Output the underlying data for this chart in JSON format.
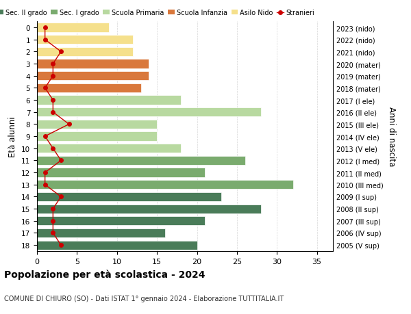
{
  "ages": [
    18,
    17,
    16,
    15,
    14,
    13,
    12,
    11,
    10,
    9,
    8,
    7,
    6,
    5,
    4,
    3,
    2,
    1,
    0
  ],
  "years": [
    "2005 (V sup)",
    "2006 (IV sup)",
    "2007 (III sup)",
    "2008 (II sup)",
    "2009 (I sup)",
    "2010 (III med)",
    "2011 (II med)",
    "2012 (I med)",
    "2013 (V ele)",
    "2014 (IV ele)",
    "2015 (III ele)",
    "2016 (II ele)",
    "2017 (I ele)",
    "2018 (mater)",
    "2019 (mater)",
    "2020 (mater)",
    "2021 (nido)",
    "2022 (nido)",
    "2023 (nido)"
  ],
  "values": [
    20,
    16,
    21,
    28,
    23,
    32,
    21,
    26,
    18,
    15,
    15,
    28,
    18,
    13,
    14,
    14,
    12,
    12,
    9
  ],
  "stranieri": [
    3,
    2,
    2,
    2,
    3,
    1,
    1,
    3,
    2,
    1,
    4,
    2,
    2,
    1,
    2,
    2,
    3,
    1,
    1
  ],
  "colors": {
    "sec2": "#4a7c59",
    "sec1": "#7aab6e",
    "primaria": "#b8d9a0",
    "infanzia": "#d9783c",
    "nido": "#f5e08c",
    "stranieri": "#cc0000"
  },
  "bar_colors_by_age": {
    "18": "#4a7c59",
    "17": "#4a7c59",
    "16": "#4a7c59",
    "15": "#4a7c59",
    "14": "#4a7c59",
    "13": "#7aab6e",
    "12": "#7aab6e",
    "11": "#7aab6e",
    "10": "#b8d9a0",
    "9": "#b8d9a0",
    "8": "#b8d9a0",
    "7": "#b8d9a0",
    "6": "#b8d9a0",
    "5": "#d9783c",
    "4": "#d9783c",
    "3": "#d9783c",
    "2": "#f5e08c",
    "1": "#f5e08c",
    "0": "#f5e08c"
  },
  "legend_labels": [
    "Sec. II grado",
    "Sec. I grado",
    "Scuola Primaria",
    "Scuola Infanzia",
    "Asilo Nido",
    "Stranieri"
  ],
  "legend_colors": [
    "#4a7c59",
    "#7aab6e",
    "#b8d9a0",
    "#d9783c",
    "#f5e08c",
    "#cc0000"
  ],
  "title": "Popolazione per età scolastica - 2024",
  "subtitle": "COMUNE DI CHIURO (SO) - Dati ISTAT 1° gennaio 2024 - Elaborazione TUTTITALIA.IT",
  "ylabel_left": "Età alunni",
  "ylabel_right": "Anni di nascita",
  "xlim": [
    0,
    37
  ],
  "background_color": "#ffffff"
}
